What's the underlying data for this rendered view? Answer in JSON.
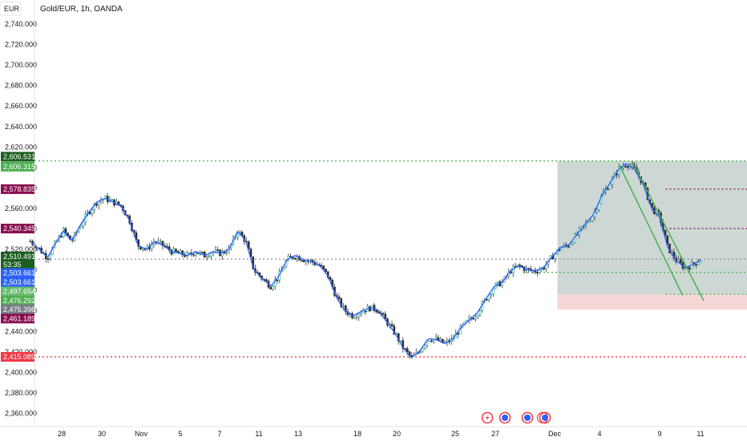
{
  "header": {
    "currency": "EUR",
    "symbol_title": "Gold/EUR, 1h, OANDA"
  },
  "chart_data": {
    "type": "candlestick",
    "title": "Gold/EUR, 1h, OANDA",
    "ylim": [
      2345,
      2755
    ],
    "y_ticks": [
      "2,740.000",
      "2,720.000",
      "2,700.000",
      "2,680.000",
      "2,660.000",
      "2,640.000",
      "2,620.000",
      "2,600.000",
      "2,580.000",
      "2,560.000",
      "2,540.000",
      "2,520.000",
      "2,500.000",
      "2,480.000",
      "2,460.000",
      "2,440.000",
      "2,420.000",
      "2,400.000",
      "2,380.000",
      "2,360.000"
    ],
    "x_ticks": [
      "28",
      "30",
      "Nov",
      "5",
      "7",
      "11",
      "13",
      "18",
      "20",
      "25",
      "27",
      "Dec",
      "4",
      "9",
      "11"
    ],
    "price_path": [
      [
        -0.4,
        2528
      ],
      [
        0.5,
        2520
      ],
      [
        1.3,
        2512
      ],
      [
        2.1,
        2526
      ],
      [
        2.9,
        2538
      ],
      [
        3.7,
        2528
      ],
      [
        4.6,
        2544
      ],
      [
        5.4,
        2556
      ],
      [
        6.2,
        2566
      ],
      [
        7.0,
        2570
      ],
      [
        7.9,
        2566
      ],
      [
        8.7,
        2562
      ],
      [
        9.5,
        2548
      ],
      [
        10.3,
        2524
      ],
      [
        11.2,
        2520
      ],
      [
        12.0,
        2528
      ],
      [
        12.8,
        2524
      ],
      [
        13.7,
        2518
      ],
      [
        14.5,
        2516
      ],
      [
        15.3,
        2514
      ],
      [
        16.1,
        2518
      ],
      [
        17.0,
        2514
      ],
      [
        17.8,
        2518
      ],
      [
        18.6,
        2516
      ],
      [
        19.4,
        2520
      ],
      [
        20.3,
        2538
      ],
      [
        21.1,
        2528
      ],
      [
        21.9,
        2500
      ],
      [
        22.7,
        2492
      ],
      [
        23.6,
        2484
      ],
      [
        24.4,
        2494
      ],
      [
        25.2,
        2510
      ],
      [
        26.0,
        2514
      ],
      [
        26.9,
        2510
      ],
      [
        27.7,
        2508
      ],
      [
        28.5,
        2504
      ],
      [
        29.3,
        2494
      ],
      [
        30.2,
        2472
      ],
      [
        31.0,
        2460
      ],
      [
        31.8,
        2455
      ],
      [
        32.7,
        2460
      ],
      [
        33.5,
        2463
      ],
      [
        34.3,
        2461
      ],
      [
        35.1,
        2450
      ],
      [
        36.0,
        2438
      ],
      [
        36.8,
        2424
      ],
      [
        37.6,
        2414
      ],
      [
        38.4,
        2420
      ],
      [
        39.3,
        2433
      ],
      [
        40.1,
        2432
      ],
      [
        40.9,
        2428
      ],
      [
        41.7,
        2432
      ],
      [
        42.6,
        2444
      ],
      [
        43.4,
        2451
      ],
      [
        44.2,
        2458
      ],
      [
        45.0,
        2471
      ],
      [
        45.9,
        2484
      ],
      [
        46.7,
        2488
      ],
      [
        47.5,
        2499
      ],
      [
        48.3,
        2504
      ],
      [
        49.2,
        2500
      ],
      [
        50.0,
        2499
      ],
      [
        50.8,
        2502
      ],
      [
        51.6,
        2512
      ],
      [
        52.5,
        2522
      ],
      [
        53.3,
        2524
      ],
      [
        54.1,
        2534
      ],
      [
        55.0,
        2545
      ],
      [
        55.8,
        2554
      ],
      [
        56.6,
        2572
      ],
      [
        57.4,
        2584
      ],
      [
        58.3,
        2598
      ],
      [
        59.1,
        2604
      ],
      [
        59.9,
        2598
      ],
      [
        60.7,
        2585
      ],
      [
        61.6,
        2560
      ],
      [
        62.4,
        2552
      ],
      [
        63.2,
        2522
      ],
      [
        64.0,
        2510
      ],
      [
        64.9,
        2502
      ],
      [
        65.7,
        2505
      ],
      [
        66.5,
        2510
      ]
    ],
    "trend_lines": [
      {
        "from": [
          58.3,
          2604
        ],
        "to": [
          64.7,
          2475
        ]
      },
      {
        "from": [
          59.7,
          2605
        ],
        "to": [
          66.8,
          2470
        ]
      }
    ],
    "position_box": {
      "x_from": 52.2,
      "x_to": 91.2,
      "profit_top": 2606.315,
      "entry": 2476.292,
      "stop": 2461.189
    },
    "horizontal_levels": [
      {
        "price": 2606.315,
        "color": "#4caf50",
        "style": "dotted",
        "x_from": 0.0
      },
      {
        "price": 2578.835,
        "color": "#880e4f",
        "style": "dotted",
        "x_from": 63.0
      },
      {
        "price": 2540.345,
        "color": "#880e4f",
        "style": "dotted",
        "x_from": 63.0
      },
      {
        "price": 2497.654,
        "color": "#4caf50",
        "style": "dotted",
        "x_from": 48.8
      },
      {
        "price": 2476.292,
        "color": "#4caf50",
        "style": "dotted",
        "x_from": 63.0
      },
      {
        "price": 2415.089,
        "color": "#f23645",
        "style": "dotted",
        "x_from": 0.0
      },
      {
        "price": 2510.491,
        "color": "#9598a1",
        "style": "dotted",
        "x_from": 0.0
      }
    ],
    "price_tags": [
      {
        "label": "2,606.531",
        "price": 2610.5,
        "color": "#1b5e20"
      },
      {
        "label": "2,606.315",
        "price": 2600.8,
        "color": "#4caf50"
      },
      {
        "label": "2,578.835",
        "price": 2578.835,
        "color": "#880e4f"
      },
      {
        "label": "2,540.345",
        "price": 2540.345,
        "color": "#880e4f"
      },
      {
        "label": "2,510.491",
        "price": 2513.0,
        "color": "#1b5e20"
      },
      {
        "label": "53:35",
        "price": 2505.0,
        "color": "#1b5e20"
      },
      {
        "label": "2,503.661",
        "price": 2497.0,
        "color": "#2962ff"
      },
      {
        "label": "2,503.661",
        "price": 2488.0,
        "color": "#2962ff"
      },
      {
        "label": "2,497.654",
        "price": 2479.0,
        "color": "#66bb6a"
      },
      {
        "label": "2,476.292",
        "price": 2470.0,
        "color": "#4caf50"
      },
      {
        "label": "2,475.398",
        "price": 2461.5,
        "color": "#787b86"
      },
      {
        "label": "2,461.189",
        "price": 2452.5,
        "color": "#880e4f"
      },
      {
        "label": "2,415.089",
        "price": 2415.089,
        "color": "#f23645"
      }
    ],
    "event_icons": [
      "lightning-icon",
      "flag-icon",
      "flag-icon",
      "flag-icon"
    ]
  }
}
